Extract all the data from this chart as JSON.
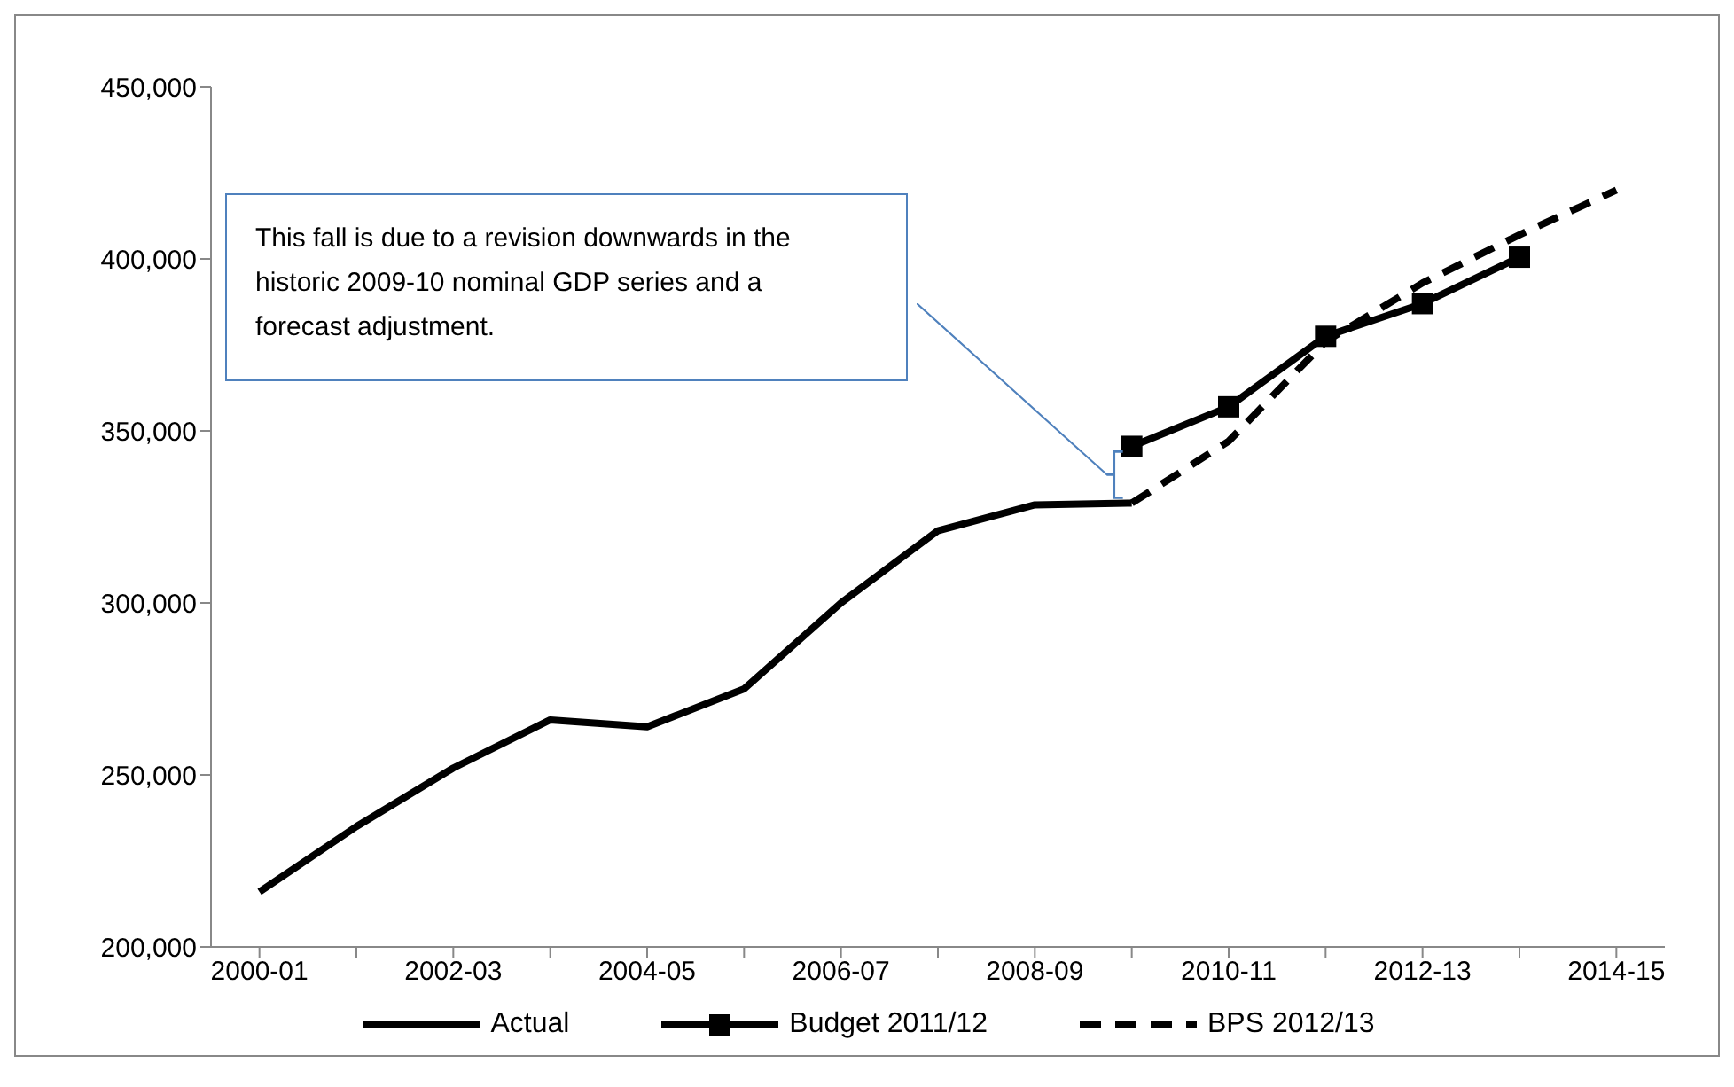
{
  "chart_data": {
    "type": "line",
    "categories": [
      "2000-01",
      null,
      "2002-03",
      null,
      "2004-05",
      null,
      "2006-07",
      null,
      "2008-09",
      null,
      "2010-11",
      null,
      "2012-13",
      null,
      "2014-15"
    ],
    "series": [
      {
        "name": "Actual",
        "color": "#000000",
        "line_style": "solid",
        "marker": "none",
        "values": [
          216000,
          235000,
          252000,
          266000,
          264000,
          275000,
          300000,
          321000,
          328500,
          329000,
          null,
          null,
          null,
          null,
          null
        ]
      },
      {
        "name": "Budget 2011/12",
        "color": "#000000",
        "line_style": "solid",
        "marker": "square",
        "values": [
          null,
          null,
          null,
          null,
          null,
          null,
          null,
          null,
          null,
          345500,
          357000,
          377500,
          387000,
          400500,
          null
        ]
      },
      {
        "name": "BPS 2012/13",
        "color": "#000000",
        "line_style": "dashed",
        "marker": "none",
        "values": [
          null,
          null,
          null,
          null,
          null,
          null,
          null,
          null,
          null,
          329000,
          347000,
          376000,
          393000,
          407000,
          420000
        ]
      }
    ],
    "ylim": [
      200000,
      450000
    ],
    "yticks": [
      {
        "value": 200000,
        "label": "200,000"
      },
      {
        "value": 250000,
        "label": "250,000"
      },
      {
        "value": 300000,
        "label": "300,000"
      },
      {
        "value": 350000,
        "label": "350,000"
      },
      {
        "value": 400000,
        "label": "400,000"
      },
      {
        "value": 450000,
        "label": "450,000"
      }
    ],
    "grid": false,
    "legend": "bottom",
    "annotations": [
      "This fall is due to a revision downwards in the historic 2009-10 nominal GDP series and a forecast adjustment."
    ]
  }
}
